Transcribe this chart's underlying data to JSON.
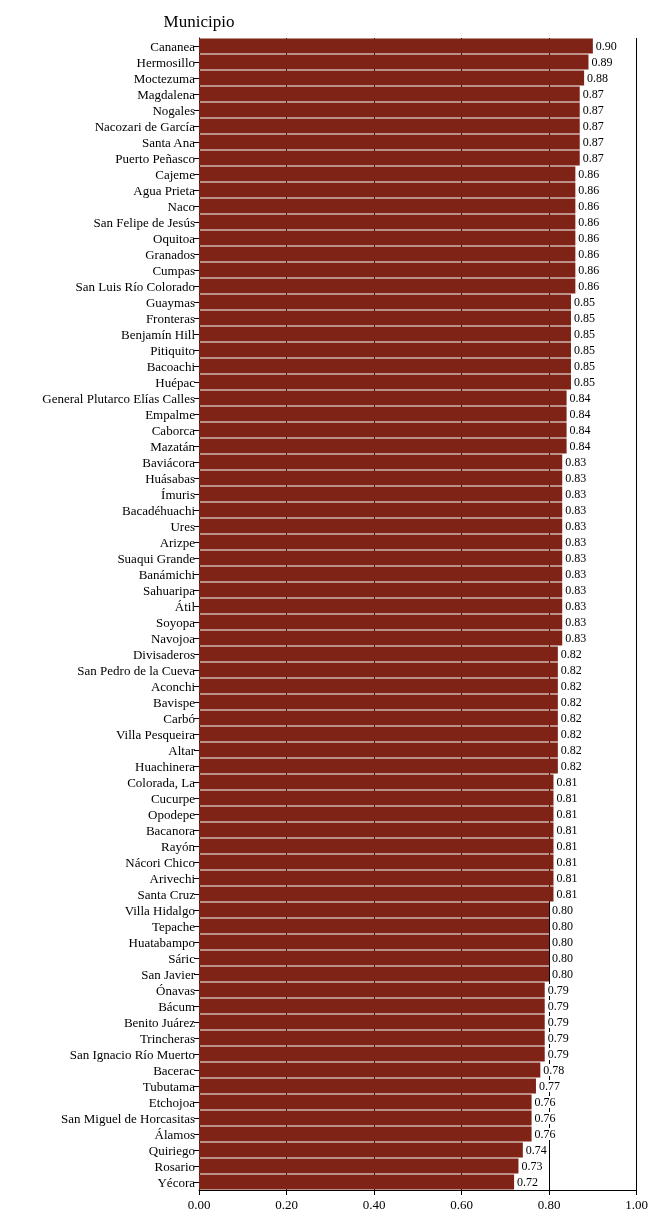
{
  "chart_data": {
    "type": "bar",
    "orientation": "horizontal",
    "ylabel": "Municipio",
    "categories": [
      "Cananea",
      "Hermosillo",
      "Moctezuma",
      "Magdalena",
      "Nogales",
      "Nacozari de García",
      "Santa Ana",
      "Puerto Peñasco",
      "Cajeme",
      "Agua Prieta",
      "Naco",
      "San Felipe de Jesús",
      "Oquitoa",
      "Granados",
      "Cumpas",
      "San Luis Río Colorado",
      "Guaymas",
      "Fronteras",
      "Benjamín Hill",
      "Pitiquito",
      "Bacoachi",
      "Huépac",
      "General Plutarco Elías Calles",
      "Empalme",
      "Caborca",
      "Mazatán",
      "Baviácora",
      "Huásabas",
      "Ímuris",
      "Bacadéhuachi",
      "Ures",
      "Arizpe",
      "Suaqui Grande",
      "Banámichi",
      "Sahuaripa",
      "Átil",
      "Soyopa",
      "Navojoa",
      "Divisaderos",
      "San Pedro de la Cueva",
      "Aconchi",
      "Bavispe",
      "Carbó",
      "Villa Pesqueira",
      "Altar",
      "Huachinera",
      "Colorada, La",
      "Cucurpe",
      "Opodepe",
      "Bacanora",
      "Rayón",
      "Nácori Chico",
      "Arivechi",
      "Santa Cruz",
      "Villa Hidalgo",
      "Tepache",
      "Huatabampo",
      "Sáric",
      "San Javier",
      "Ónavas",
      "Bácum",
      "Benito Juárez",
      "Trincheras",
      "San Ignacio Río Muerto",
      "Bacerac",
      "Tubutama",
      "Etchojoa",
      "San Miguel de Horcasitas",
      "Álamos",
      "Quiriego",
      "Rosario",
      "Yécora"
    ],
    "values": [
      0.9,
      0.89,
      0.88,
      0.87,
      0.87,
      0.87,
      0.87,
      0.87,
      0.86,
      0.86,
      0.86,
      0.86,
      0.86,
      0.86,
      0.86,
      0.86,
      0.85,
      0.85,
      0.85,
      0.85,
      0.85,
      0.85,
      0.84,
      0.84,
      0.84,
      0.84,
      0.83,
      0.83,
      0.83,
      0.83,
      0.83,
      0.83,
      0.83,
      0.83,
      0.83,
      0.83,
      0.83,
      0.83,
      0.82,
      0.82,
      0.82,
      0.82,
      0.82,
      0.82,
      0.82,
      0.82,
      0.81,
      0.81,
      0.81,
      0.81,
      0.81,
      0.81,
      0.81,
      0.81,
      0.8,
      0.8,
      0.8,
      0.8,
      0.8,
      0.79,
      0.79,
      0.79,
      0.79,
      0.79,
      0.78,
      0.77,
      0.76,
      0.76,
      0.76,
      0.74,
      0.73,
      0.72
    ],
    "value_labels": [
      "0.90",
      "0.89",
      "0.88",
      "0.87",
      "0.87",
      "0.87",
      "0.87",
      "0.87",
      "0.86",
      "0.86",
      "0.86",
      "0.86",
      "0.86",
      "0.86",
      "0.86",
      "0.86",
      "0.85",
      "0.85",
      "0.85",
      "0.85",
      "0.85",
      "0.85",
      "0.84",
      "0.84",
      "0.84",
      "0.84",
      "0.83",
      "0.83",
      "0.83",
      "0.83",
      "0.83",
      "0.83",
      "0.83",
      "0.83",
      "0.83",
      "0.83",
      "0.83",
      "0.83",
      "0.82",
      "0.82",
      "0.82",
      "0.82",
      "0.82",
      "0.82",
      "0.82",
      "0.82",
      "0.81",
      "0.81",
      "0.81",
      "0.81",
      "0.81",
      "0.81",
      "0.81",
      "0.81",
      "0.80",
      "0.80",
      "0.80",
      "0.80",
      "0.80",
      "0.79",
      "0.79",
      "0.79",
      "0.79",
      "0.79",
      "0.78",
      "0.77",
      "0.76",
      "0.76",
      "0.76",
      "0.74",
      "0.73",
      "0.72"
    ],
    "color": "#7f2316",
    "grid": "x",
    "xlim": [
      0,
      1
    ],
    "xticks": [
      {
        "value": 0,
        "label": "0.00"
      },
      {
        "value": 0.2,
        "label": "0.20"
      },
      {
        "value": 0.4,
        "label": "0.40"
      },
      {
        "value": 0.6,
        "label": "0.60"
      },
      {
        "value": 0.8,
        "label": "0.80"
      },
      {
        "value": 1,
        "label": "1.00"
      }
    ]
  }
}
